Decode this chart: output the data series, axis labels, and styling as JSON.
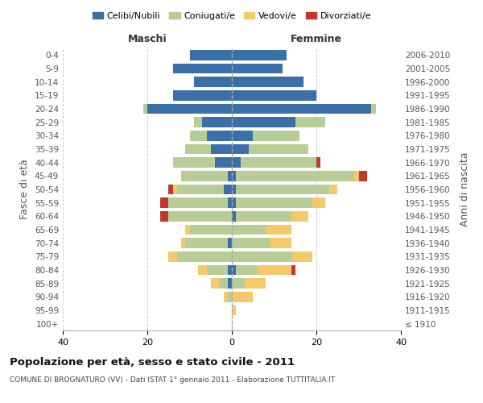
{
  "age_groups": [
    "100+",
    "95-99",
    "90-94",
    "85-89",
    "80-84",
    "75-79",
    "70-74",
    "65-69",
    "60-64",
    "55-59",
    "50-54",
    "45-49",
    "40-44",
    "35-39",
    "30-34",
    "25-29",
    "20-24",
    "15-19",
    "10-14",
    "5-9",
    "0-4"
  ],
  "birth_years": [
    "≤ 1910",
    "1911-1915",
    "1916-1920",
    "1921-1925",
    "1926-1930",
    "1931-1935",
    "1936-1940",
    "1941-1945",
    "1946-1950",
    "1951-1955",
    "1956-1960",
    "1961-1965",
    "1966-1970",
    "1971-1975",
    "1976-1980",
    "1981-1985",
    "1986-1990",
    "1991-1995",
    "1996-2000",
    "2001-2005",
    "2006-2010"
  ],
  "male": {
    "celibi": [
      0,
      0,
      0,
      1,
      1,
      0,
      1,
      0,
      0,
      1,
      2,
      1,
      4,
      5,
      6,
      7,
      20,
      14,
      9,
      14,
      10
    ],
    "coniugati": [
      0,
      0,
      1,
      2,
      5,
      13,
      10,
      10,
      15,
      14,
      11,
      11,
      10,
      6,
      4,
      2,
      1,
      0,
      0,
      0,
      0
    ],
    "vedovi": [
      0,
      0,
      1,
      2,
      2,
      2,
      1,
      1,
      0,
      0,
      1,
      0,
      0,
      0,
      0,
      0,
      0,
      0,
      0,
      0,
      0
    ],
    "divorziati": [
      0,
      0,
      0,
      0,
      0,
      0,
      0,
      0,
      2,
      2,
      1,
      0,
      0,
      0,
      0,
      0,
      0,
      0,
      0,
      0,
      0
    ]
  },
  "female": {
    "nubili": [
      0,
      0,
      0,
      0,
      1,
      0,
      0,
      0,
      1,
      1,
      1,
      1,
      2,
      4,
      5,
      15,
      33,
      20,
      17,
      12,
      13
    ],
    "coniugate": [
      0,
      0,
      0,
      3,
      5,
      14,
      9,
      8,
      13,
      18,
      22,
      28,
      18,
      14,
      11,
      7,
      1,
      0,
      0,
      0,
      0
    ],
    "vedove": [
      0,
      1,
      5,
      5,
      8,
      5,
      5,
      6,
      4,
      3,
      2,
      1,
      0,
      0,
      0,
      0,
      0,
      0,
      0,
      0,
      0
    ],
    "divorziate": [
      0,
      0,
      0,
      0,
      1,
      0,
      0,
      0,
      0,
      0,
      0,
      2,
      1,
      0,
      0,
      0,
      0,
      0,
      0,
      0,
      0
    ]
  },
  "colors": {
    "celibi": "#3a6fa8",
    "coniugati": "#b8cc96",
    "vedovi": "#f5c96a",
    "divorziati": "#c0392b"
  },
  "xlim": 40,
  "title": "Popolazione per età, sesso e stato civile - 2011",
  "subtitle": "COMUNE DI BROGNATURO (VV) - Dati ISTAT 1° gennaio 2011 - Elaborazione TUTTITALIA.IT",
  "ylabel_left": "Fasce di età",
  "ylabel_right": "Anni di nascita",
  "xlabel_male": "Maschi",
  "xlabel_female": "Femmine"
}
